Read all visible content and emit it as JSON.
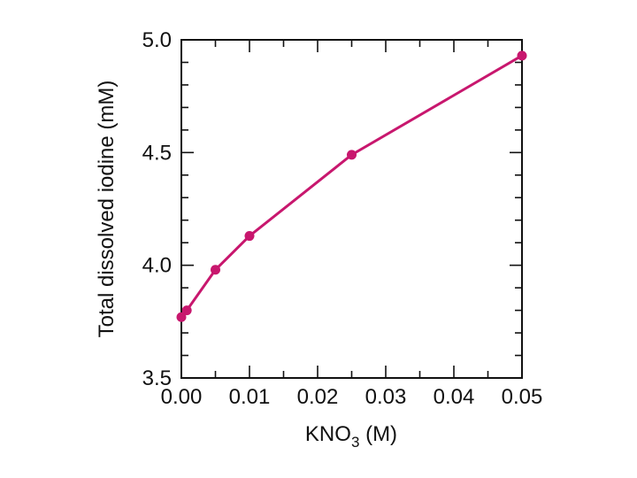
{
  "chart_data": {
    "type": "line",
    "title": "",
    "xlabel": {
      "main": "KNO",
      "sub": "3",
      "rest": " (M)"
    },
    "ylabel": "Total dissolved iodine (mM)",
    "xlim": [
      0,
      0.05
    ],
    "ylim": [
      3.5,
      5.0
    ],
    "x_ticks": [
      {
        "value": 0.0,
        "label": "0.00"
      },
      {
        "value": 0.01,
        "label": "0.01"
      },
      {
        "value": 0.02,
        "label": "0.02"
      },
      {
        "value": 0.03,
        "label": "0.03"
      },
      {
        "value": 0.04,
        "label": "0.04"
      },
      {
        "value": 0.05,
        "label": "0.05"
      }
    ],
    "y_ticks": [
      {
        "value": 3.5,
        "label": "3.5"
      },
      {
        "value": 4.0,
        "label": "4.0"
      },
      {
        "value": 4.5,
        "label": "4.5"
      },
      {
        "value": 5.0,
        "label": "5.0"
      }
    ],
    "x_minor_step": 0.005,
    "y_minor_step": 0.1,
    "grid": false,
    "series": [
      {
        "color": "#c8176e",
        "points": [
          {
            "x": 0.0,
            "y": 3.77
          },
          {
            "x": 0.0008,
            "y": 3.8
          },
          {
            "x": 0.005,
            "y": 3.98
          },
          {
            "x": 0.01,
            "y": 4.13
          },
          {
            "x": 0.025,
            "y": 4.49
          },
          {
            "x": 0.05,
            "y": 4.93
          }
        ]
      }
    ]
  }
}
